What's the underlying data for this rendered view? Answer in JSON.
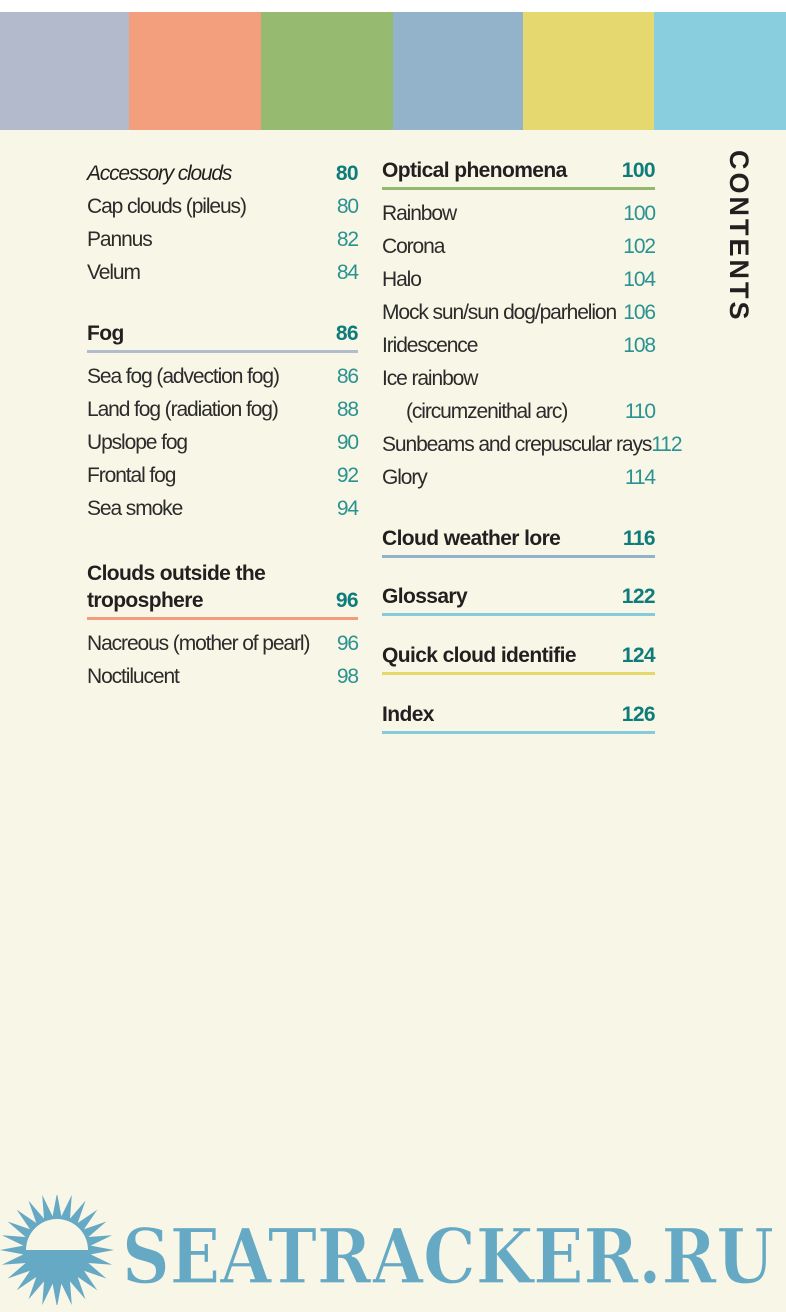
{
  "band_colors": [
    "#b3bacc",
    "#f39e7c",
    "#95ba70",
    "#93b3cb",
    "#e4d86e",
    "#88cede"
  ],
  "side_title": "CONTENTS",
  "columns": [
    {
      "sections": [
        {
          "heading": "Accessory clouds",
          "page": "80",
          "italic": true,
          "items": [
            {
              "label": "Cap clouds (pileus)",
              "page": "80"
            },
            {
              "label": "Pannus",
              "page": "82"
            },
            {
              "label": "Velum",
              "page": "84"
            }
          ]
        },
        {
          "heading": "Fog",
          "page": "86",
          "line_color": "#b3bccc",
          "items": [
            {
              "label": "Sea fog (advection fog)",
              "page": "86"
            },
            {
              "label": "Land fog (radiation fog)",
              "page": "88"
            },
            {
              "label": "Upslope fog",
              "page": "90"
            },
            {
              "label": "Frontal fog",
              "page": "92"
            },
            {
              "label": "Sea smoke",
              "page": "94"
            }
          ]
        },
        {
          "heading": "Clouds outside the troposphere",
          "page": "96",
          "line_color": "#f39c7c",
          "items": [
            {
              "label": "Nacreous (mother of pearl)",
              "page": "96"
            },
            {
              "label": "Noctilucent",
              "page": "98"
            }
          ]
        }
      ]
    },
    {
      "sections": [
        {
          "heading": "Optical phenomena",
          "page": "100",
          "line_color": "#93b86f",
          "items": [
            {
              "label": "Rainbow",
              "page": "100"
            },
            {
              "label": "Corona",
              "page": "102"
            },
            {
              "label": "Halo",
              "page": "104"
            },
            {
              "label": "Mock sun/sun dog/parhelion",
              "page": "106"
            },
            {
              "label": "Iridescence",
              "page": "108"
            },
            {
              "label": "Ice rainbow",
              "page": ""
            },
            {
              "label": "(circumzenithal arc)",
              "page": "110",
              "indent": true
            },
            {
              "label": "Sunbeams and crepuscular rays",
              "page": "112"
            },
            {
              "label": "Glory",
              "page": "114"
            }
          ]
        },
        {
          "heading": "Cloud weather lore",
          "page": "116",
          "line_color": "#91b2cb",
          "items": []
        },
        {
          "heading": "Glossary",
          "page": "122",
          "line_color": "#86cbdc",
          "items": []
        },
        {
          "heading": "Quick cloud identifie",
          "page": "124",
          "line_color": "#e4d76c",
          "items": []
        },
        {
          "heading": "Index",
          "page": "126",
          "line_color": "#86cbdc",
          "items": []
        }
      ]
    }
  ],
  "watermark": {
    "text": "SEATRACKER.RU",
    "color": "#66a9c4",
    "icon": "sun-icon"
  }
}
